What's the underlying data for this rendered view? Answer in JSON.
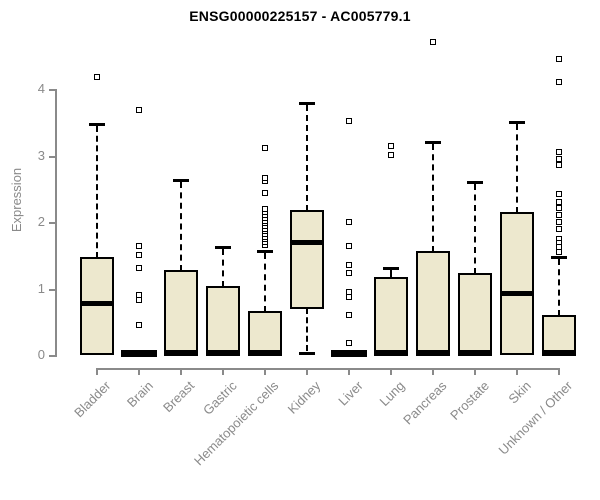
{
  "chart_data": {
    "type": "boxplot",
    "title": "ENSG00000225157 - AC005779.1",
    "ylabel": "Expression",
    "xlabel": "",
    "ylim": [
      0,
      4.75
    ],
    "yticks": [
      0,
      1,
      2,
      3,
      4
    ],
    "grid": false,
    "legend": false,
    "categories": [
      "Bladder",
      "Brain",
      "Breast",
      "Gastric",
      "Hematopoietic cells",
      "Kidney",
      "Liver",
      "Lung",
      "Pancreas",
      "Prostate",
      "Skin",
      "Unknown / Other"
    ],
    "boxes": [
      {
        "category": "Bladder",
        "q1": 0.02,
        "median": 0.76,
        "q3": 1.46,
        "whisker_low": 0.02,
        "whisker_high": 3.48,
        "outliers": [
          4.18
        ]
      },
      {
        "category": "Brain",
        "q1": 0.0,
        "median": 0.01,
        "q3": 0.02,
        "whisker_low": 0.0,
        "whisker_high": 0.02,
        "outliers": [
          3.68,
          1.64,
          1.5,
          1.31,
          0.9,
          0.82,
          0.45
        ]
      },
      {
        "category": "Breast",
        "q1": 0.0,
        "median": 0.03,
        "q3": 1.26,
        "whisker_low": 0.0,
        "whisker_high": 2.63,
        "outliers": []
      },
      {
        "category": "Gastric",
        "q1": 0.0,
        "median": 0.03,
        "q3": 1.02,
        "whisker_low": 0.0,
        "whisker_high": 1.62,
        "outliers": []
      },
      {
        "category": "Hematopoietic cells",
        "q1": 0.0,
        "median": 0.03,
        "q3": 0.65,
        "whisker_low": 0.0,
        "whisker_high": 1.57,
        "outliers": [
          1.66,
          1.7,
          1.74,
          1.78,
          1.82,
          1.86,
          1.9,
          1.94,
          1.98,
          2.02,
          2.06,
          2.1,
          2.15,
          2.2,
          2.44,
          2.62,
          2.66,
          3.11
        ]
      },
      {
        "category": "Kidney",
        "q1": 0.7,
        "median": 1.68,
        "q3": 2.16,
        "whisker_low": 0.03,
        "whisker_high": 3.79,
        "outliers": []
      },
      {
        "category": "Liver",
        "q1": 0.0,
        "median": 0.01,
        "q3": 0.02,
        "whisker_low": 0.0,
        "whisker_high": 0.02,
        "outliers": [
          3.52,
          2.0,
          1.64,
          1.35,
          1.23,
          0.95,
          0.87,
          0.6,
          0.18
        ]
      },
      {
        "category": "Lung",
        "q1": 0.0,
        "median": 0.03,
        "q3": 1.16,
        "whisker_low": 0.0,
        "whisker_high": 1.31,
        "outliers": [
          3.14,
          3.01
        ]
      },
      {
        "category": "Pancreas",
        "q1": 0.0,
        "median": 0.03,
        "q3": 1.55,
        "whisker_low": 0.0,
        "whisker_high": 3.2,
        "outliers": [
          4.71
        ]
      },
      {
        "category": "Prostate",
        "q1": 0.0,
        "median": 0.03,
        "q3": 1.22,
        "whisker_low": 0.0,
        "whisker_high": 2.6,
        "outliers": []
      },
      {
        "category": "Skin",
        "q1": 0.02,
        "median": 0.92,
        "q3": 2.14,
        "whisker_low": 0.02,
        "whisker_high": 3.5,
        "outliers": []
      },
      {
        "category": "Unknown / Other",
        "q1": 0.0,
        "median": 0.03,
        "q3": 0.59,
        "whisker_low": 0.0,
        "whisker_high": 1.48,
        "outliers": [
          4.45,
          4.11,
          3.06,
          2.95,
          2.85,
          2.42,
          2.3,
          2.21,
          2.1,
          2.0,
          1.9,
          1.75,
          1.68,
          1.62,
          1.55
        ]
      }
    ],
    "colors": {
      "box_fill": "#ede8ce",
      "box_border": "#000000",
      "median": "#000000",
      "axis": "#8a8a8a",
      "title": "#000000",
      "background": "#ffffff"
    }
  }
}
